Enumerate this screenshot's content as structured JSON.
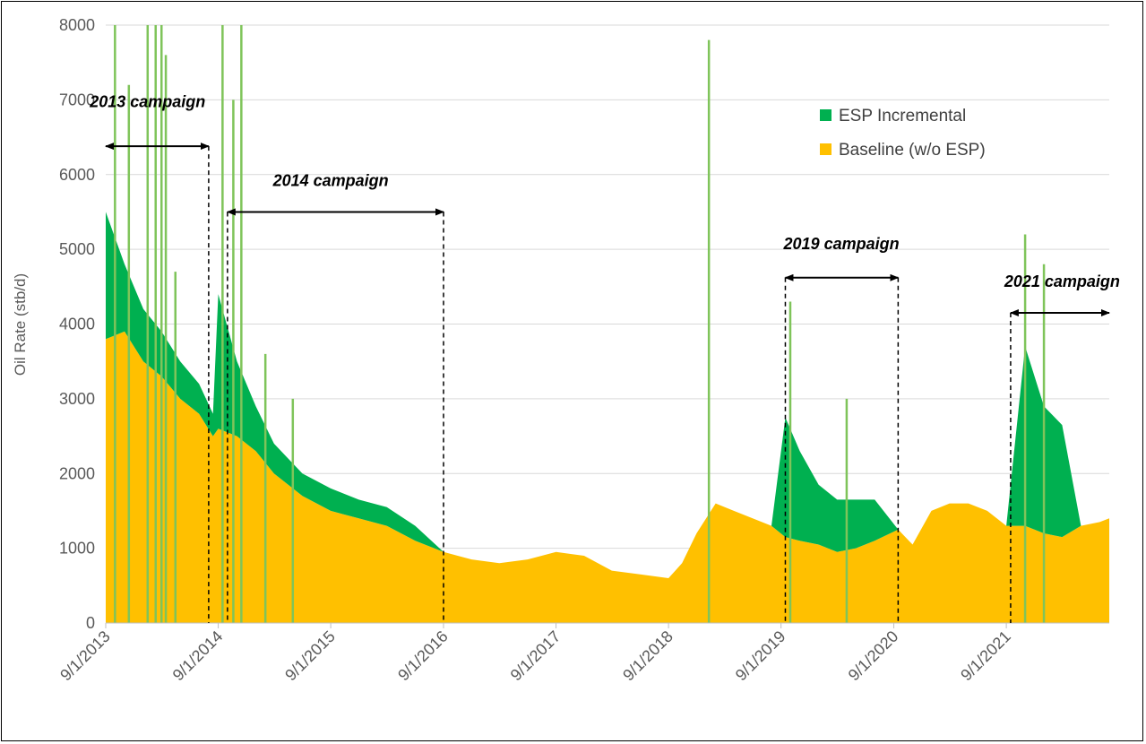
{
  "chart_data": {
    "type": "area",
    "title": "",
    "xlabel": "",
    "ylabel": "Oil Rate (stb/d)",
    "x_ticks": [
      "9/1/2013",
      "9/1/2014",
      "9/1/2015",
      "9/1/2016",
      "9/1/2017",
      "9/1/2018",
      "9/1/2019",
      "9/1/2020",
      "9/1/2021"
    ],
    "y_ticks": [
      0,
      1000,
      2000,
      3000,
      4000,
      5000,
      6000,
      7000,
      8000
    ],
    "ylim": [
      0,
      8000
    ],
    "xlim": [
      "9/1/2013",
      "8/1/2022"
    ],
    "grid": "horizontal",
    "legend_position": "top-right",
    "stacked": true,
    "series": [
      {
        "name": "Baseline (w/o ESP)",
        "color": "#ffc000",
        "points": [
          [
            "9/1/2013",
            3800
          ],
          [
            "11/1/2013",
            3900
          ],
          [
            "1/1/2014",
            3500
          ],
          [
            "3/1/2014",
            3300
          ],
          [
            "5/1/2014",
            3000
          ],
          [
            "7/1/2014",
            2800
          ],
          [
            "8/15/2014",
            2500
          ],
          [
            "9/1/2014",
            2600
          ],
          [
            "11/1/2014",
            2500
          ],
          [
            "1/1/2015",
            2300
          ],
          [
            "3/1/2015",
            2000
          ],
          [
            "6/1/2015",
            1700
          ],
          [
            "9/1/2015",
            1500
          ],
          [
            "12/1/2015",
            1400
          ],
          [
            "3/1/2016",
            1300
          ],
          [
            "6/1/2016",
            1100
          ],
          [
            "9/1/2016",
            950
          ],
          [
            "12/1/2016",
            850
          ],
          [
            "3/1/2017",
            800
          ],
          [
            "6/1/2017",
            850
          ],
          [
            "9/1/2017",
            950
          ],
          [
            "12/1/2017",
            900
          ],
          [
            "3/1/2018",
            700
          ],
          [
            "6/1/2018",
            650
          ],
          [
            "9/1/2018",
            600
          ],
          [
            "10/15/2018",
            800
          ],
          [
            "12/1/2018",
            1200
          ],
          [
            "2/1/2019",
            1600
          ],
          [
            "4/1/2019",
            1500
          ],
          [
            "6/1/2019",
            1400
          ],
          [
            "8/1/2019",
            1300
          ],
          [
            "9/15/2019",
            1150
          ],
          [
            "11/1/2019",
            1100
          ],
          [
            "1/1/2020",
            1050
          ],
          [
            "3/1/2020",
            950
          ],
          [
            "5/1/2020",
            1000
          ],
          [
            "7/1/2020",
            1100
          ],
          [
            "9/15/2020",
            1250
          ],
          [
            "11/1/2020",
            1050
          ],
          [
            "1/1/2021",
            1500
          ],
          [
            "3/1/2021",
            1600
          ],
          [
            "5/1/2021",
            1600
          ],
          [
            "7/1/2021",
            1500
          ],
          [
            "9/1/2021",
            1300
          ],
          [
            "11/1/2021",
            1300
          ],
          [
            "1/1/2022",
            1200
          ],
          [
            "3/1/2022",
            1150
          ],
          [
            "5/1/2022",
            1300
          ],
          [
            "7/1/2022",
            1350
          ],
          [
            "8/1/2022",
            1400
          ]
        ]
      },
      {
        "name": "ESP Incremental",
        "color": "#00b050",
        "points": [
          [
            "9/1/2013",
            1700
          ],
          [
            "11/1/2013",
            900
          ],
          [
            "1/1/2014",
            700
          ],
          [
            "3/1/2014",
            600
          ],
          [
            "5/1/2014",
            500
          ],
          [
            "7/1/2014",
            400
          ],
          [
            "8/15/2014",
            300
          ],
          [
            "9/1/2014",
            1800
          ],
          [
            "11/1/2014",
            1000
          ],
          [
            "1/1/2015",
            600
          ],
          [
            "3/1/2015",
            400
          ],
          [
            "6/1/2015",
            300
          ],
          [
            "9/1/2015",
            300
          ],
          [
            "12/1/2015",
            250
          ],
          [
            "3/1/2016",
            250
          ],
          [
            "6/1/2016",
            200
          ],
          [
            "9/1/2016",
            0
          ],
          [
            "12/1/2016",
            0
          ],
          [
            "3/1/2017",
            0
          ],
          [
            "6/1/2017",
            0
          ],
          [
            "9/1/2017",
            0
          ],
          [
            "12/1/2017",
            0
          ],
          [
            "3/1/2018",
            0
          ],
          [
            "6/1/2018",
            0
          ],
          [
            "9/1/2018",
            0
          ],
          [
            "10/15/2018",
            0
          ],
          [
            "12/1/2018",
            0
          ],
          [
            "2/1/2019",
            0
          ],
          [
            "4/1/2019",
            0
          ],
          [
            "6/1/2019",
            0
          ],
          [
            "8/1/2019",
            0
          ],
          [
            "9/15/2019",
            1600
          ],
          [
            "11/1/2019",
            1200
          ],
          [
            "1/1/2020",
            800
          ],
          [
            "3/1/2020",
            700
          ],
          [
            "5/1/2020",
            650
          ],
          [
            "7/1/2020",
            550
          ],
          [
            "9/15/2020",
            0
          ],
          [
            "11/1/2020",
            0
          ],
          [
            "1/1/2021",
            0
          ],
          [
            "3/1/2021",
            0
          ],
          [
            "5/1/2021",
            0
          ],
          [
            "7/1/2021",
            0
          ],
          [
            "9/1/2021",
            0
          ],
          [
            "11/1/2021",
            2400
          ],
          [
            "1/1/2022",
            1700
          ],
          [
            "3/1/2022",
            1500
          ],
          [
            "5/1/2022",
            0
          ],
          [
            "7/1/2022",
            0
          ],
          [
            "8/1/2022",
            0
          ]
        ]
      }
    ],
    "spikes": [
      {
        "x": "10/1/2013",
        "value": 8000
      },
      {
        "x": "11/15/2013",
        "value": 7200
      },
      {
        "x": "1/15/2014",
        "value": 8000
      },
      {
        "x": "2/10/2014",
        "value": 8000
      },
      {
        "x": "3/1/2014",
        "value": 8000
      },
      {
        "x": "3/15/2014",
        "value": 7600
      },
      {
        "x": "4/15/2014",
        "value": 4700
      },
      {
        "x": "9/15/2014",
        "value": 8000
      },
      {
        "x": "10/20/2014",
        "value": 7000
      },
      {
        "x": "11/15/2014",
        "value": 8000
      },
      {
        "x": "2/1/2015",
        "value": 3600
      },
      {
        "x": "5/1/2015",
        "value": 3000
      },
      {
        "x": "1/10/2019",
        "value": 7800
      },
      {
        "x": "10/1/2019",
        "value": 4300
      },
      {
        "x": "4/1/2020",
        "value": 3000
      },
      {
        "x": "11/1/2021",
        "value": 5200
      },
      {
        "x": "1/1/2022",
        "value": 4800
      }
    ],
    "annotations": [
      {
        "text": "2013 campaign",
        "start": "9/1/2013",
        "end": "8/1/2014",
        "y": 6380,
        "label_y": 6900,
        "label_x": "1/15/2014",
        "dashed_end": true,
        "dashed_start": false
      },
      {
        "text": "2014 campaign",
        "start": "10/1/2014",
        "end": "9/1/2016",
        "y": 5500,
        "label_y": 5850,
        "label_x": "9/1/2015",
        "dashed_end": true,
        "dashed_start": true
      },
      {
        "text": "2019 campaign",
        "start": "9/15/2019",
        "end": "9/15/2020",
        "y": 4620,
        "label_y": 5000,
        "label_x": "3/15/2020",
        "dashed_end": true,
        "dashed_start": true
      },
      {
        "text": "2021 campaign",
        "start": "9/15/2021",
        "end": "8/1/2022",
        "y": 4150,
        "label_y": 4500,
        "label_x": "3/1/2022",
        "dashed_end": false,
        "dashed_start": true
      }
    ]
  }
}
